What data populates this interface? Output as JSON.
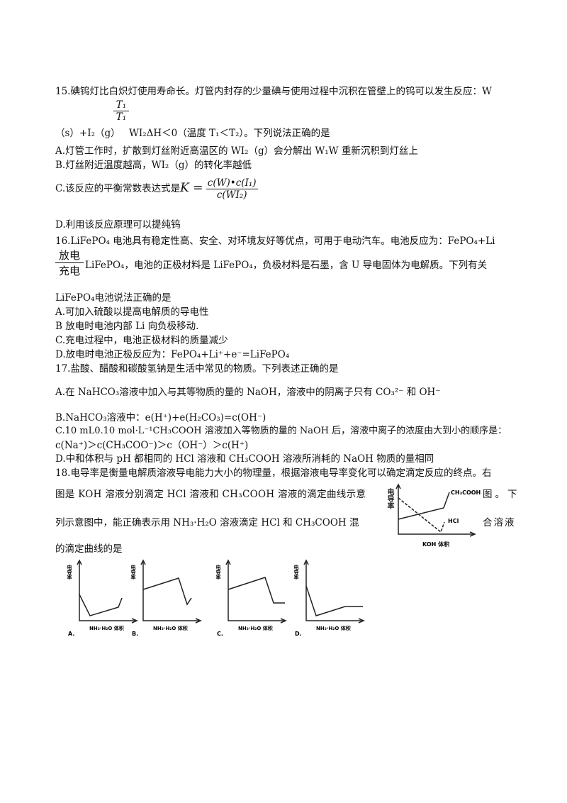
{
  "q15": {
    "l1": "15.碘钨灯比白炽灯使用寿命长。灯管内封存的少量碘与使用过程中沉积在管壁上的钨可以发生反应：W",
    "arrow_top": "T₁",
    "arrow_bottom": "T₁",
    "l2": "（s）+I₂（g）",
    "l2b": "WI₂ΔH＜0（温度 T₁＜T₂）。下列说法正确的是",
    "a": "A.灯管工作时，扩散到灯丝附近高温区的 WI₂（g）会分解出 W₁W 重新沉积到灯丝上",
    "b": "B.灯丝附近温度越高，WI₂（g）的转化率越低",
    "c_prefix": "C.该反应的平衡常数表达式是",
    "c_k": "K =",
    "c_num": "c(W)•c(I₁)",
    "c_den": "c(WI₂)",
    "d": "D.利用该反应原理可以提纯钨"
  },
  "q16": {
    "l1": "16.LiFePO₄ 电池具有稳定性高、安全、对环境友好等优点，可用于电动汽车。电池反应为：FePO₄+Li",
    "arrow_top": "放电",
    "arrow_bottom": "充电",
    "l2": "LiFePO₄，电池的正极材料是 LiFePO₄，负极材料是石墨，含 U 导电固体为电解质。下列有关",
    "l3": "LiFePO₄电池说法正确的是",
    "a": "A.可加入硫酸以提高电解质的导电性",
    "b": "B 放电时电池内部 Li 向负极移动.",
    "c": "C.充电过程中，电池正极材料的质量减少",
    "d": "D.放电时电池正极反应为：FePO₄+Li⁺+e⁻=LiFePO₄"
  },
  "q17": {
    "l1": "17.盐酸、醋酸和碳酸氢钠是生活中常见的物质。下列表述正确的是",
    "a": "A.在 NaHCO₃溶液中加入与其等物质的量的 NaOH，溶液中的阴离子只有 CO₃²⁻ 和 OH⁻",
    "b": "B.NaHCO₃溶液中：e(H⁺)+e(H₂CO₃)=c(OH⁻)",
    "c1": "C.10  mL0.10   mol·L⁻¹CH₃COOH 溶液加入等物质的量的 NaOH 后，溶液中离子的浓度由大到小的顺序是：",
    "c2": "c(Na⁺)＞c(CH₃COO⁻)＞c（OH⁻）＞c(H⁺)",
    "d": "D.中和体积与 pH 都相同的 HCl 溶液和 CH₃COOH 溶液所消耗的 NaOH 物质的量相同"
  },
  "q18": {
    "l1": "18.电导率是衡量电解质溶液导电能力大小的物理量，根据溶液电导率变化可以确定滴定反应的终点。右",
    "l2": "图是 KOH 溶液分别滴定 HCl 溶液和 CH₃COOH 溶液的滴定曲线示意",
    "l2r": "图。下",
    "l3": "列示意图中，能正确表示用 NH₃·H₂O 溶液滴定 HCl 和 CH₃COOH 混",
    "l3r": "合溶液",
    "l4": "的滴定曲线的是",
    "ref_graph": {
      "ylabel": "电导率",
      "xlabel": "KOH 体积",
      "series": [
        "CH₃COOH",
        "HCl"
      ]
    },
    "options": [
      {
        "label": "A.",
        "xlabel": "NH₃·H₂O 体积",
        "ylabel": "电导率"
      },
      {
        "label": "B.",
        "xlabel": "NH₃·H₂O 体积",
        "ylabel": "电导率"
      },
      {
        "label": "C.",
        "xlabel": "NH₃·H₂O 体积",
        "ylabel": "电导率"
      },
      {
        "label": "D.",
        "xlabel": "NH₃·H₂O 体积",
        "ylabel": "电导率"
      }
    ]
  }
}
